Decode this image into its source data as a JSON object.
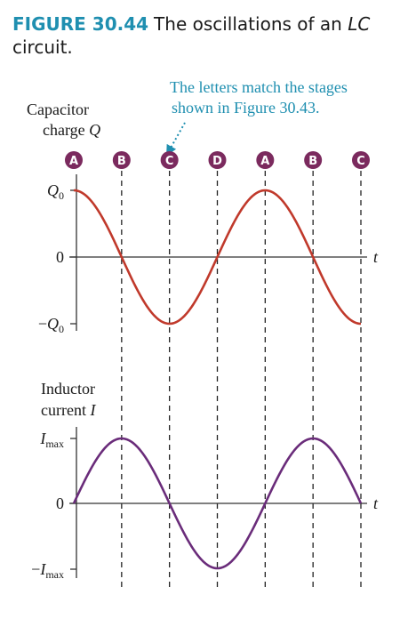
{
  "caption": {
    "label": "FIGURE 30.44",
    "text_before": "The oscillations of an ",
    "text_italic": "LC",
    "text_after": " circuit."
  },
  "annotation": {
    "line1": "The letters match the stages",
    "line2": "shown in Figure 30.43."
  },
  "stages": [
    "A",
    "B",
    "C",
    "D",
    "A",
    "B",
    "C"
  ],
  "colors": {
    "caption_label": "#1f8fb0",
    "annotation": "#1f8fb0",
    "stage_badge": "#7b2a5e",
    "charge_curve": "#c0392b",
    "current_curve": "#6a2c7a",
    "axis": "#333333"
  },
  "chart_data": [
    {
      "type": "line",
      "title": "",
      "ylabel_line1": "Capacitor",
      "ylabel_line2": "charge",
      "ylabel_symbol": "Q",
      "xlabel": "t",
      "yticks": [
        {
          "label": "Q",
          "sub": "0",
          "prefix": ""
        },
        {
          "label": "0",
          "sub": "",
          "prefix": ""
        },
        {
          "label": "Q",
          "sub": "0",
          "prefix": "−"
        }
      ],
      "function": "cos",
      "cycles": 1.5,
      "amplitude": 1
    },
    {
      "type": "line",
      "title": "",
      "ylabel_line1": "Inductor",
      "ylabel_line2": "current",
      "ylabel_symbol": "I",
      "xlabel": "t",
      "yticks": [
        {
          "label": "I",
          "sub": "max",
          "prefix": ""
        },
        {
          "label": "0",
          "sub": "",
          "prefix": ""
        },
        {
          "label": "I",
          "sub": "max",
          "prefix": "−"
        }
      ],
      "function": "sin",
      "cycles": 1.5,
      "amplitude": 1
    }
  ]
}
